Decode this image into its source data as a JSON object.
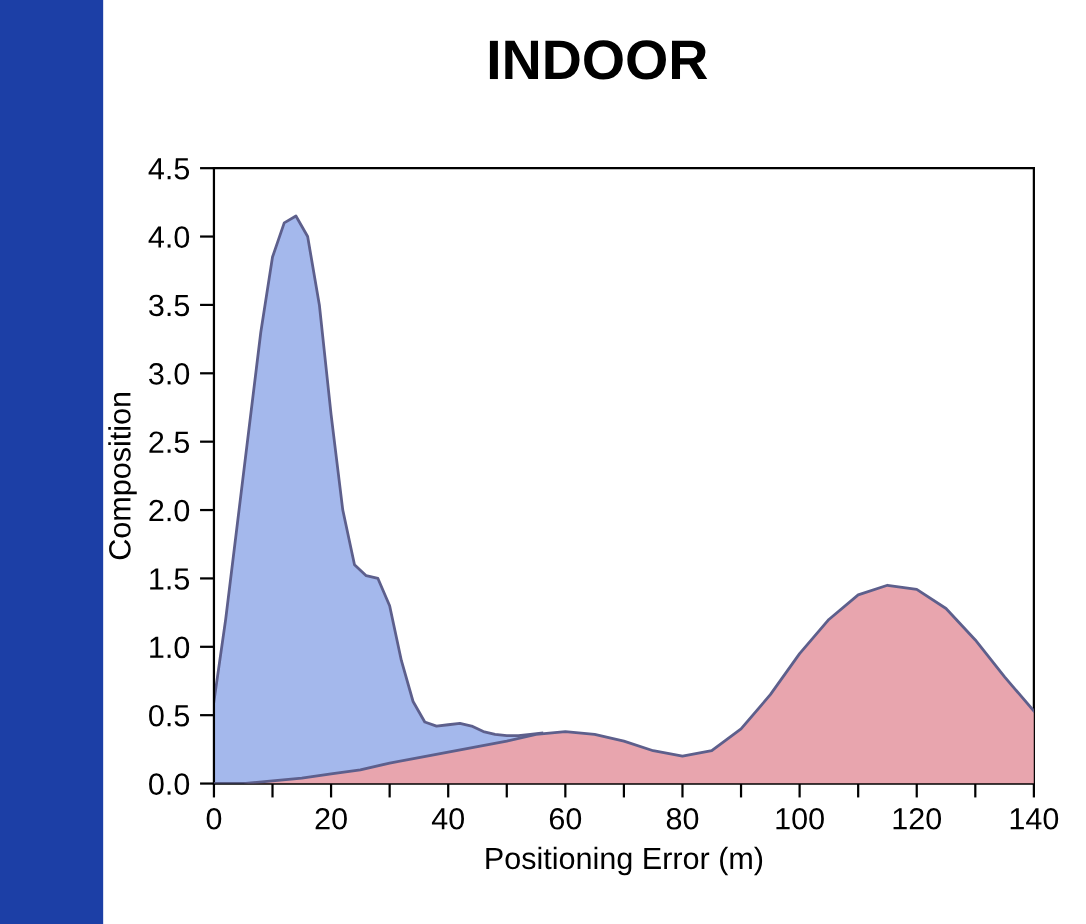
{
  "chart_data": {
    "type": "area",
    "title": "INDOOR",
    "xlabel": "Positioning Error (m)",
    "ylabel": "Composition",
    "xlim": [
      0,
      140
    ],
    "ylim": [
      0,
      4.5
    ],
    "xticks": [
      0,
      {
        "value": 10,
        "label": null
      },
      20,
      {
        "value": 30,
        "label": null
      },
      40,
      {
        "value": 50,
        "label": null
      },
      60,
      {
        "value": 70,
        "label": null
      },
      80,
      {
        "value": 90,
        "label": null
      },
      100,
      {
        "value": 110,
        "label": null
      },
      120,
      {
        "value": 130,
        "label": null
      },
      140
    ],
    "yticks": [
      {
        "value": 0,
        "label": "0.0"
      },
      0.5,
      {
        "value": 1,
        "label": "1.0"
      },
      1.5,
      {
        "value": 2,
        "label": "2.0"
      },
      2.5,
      {
        "value": 3,
        "label": "3.0"
      },
      3.5,
      {
        "value": 4,
        "label": "4.0"
      },
      4.5
    ],
    "grid": false,
    "legend": false,
    "series": [
      {
        "color": "#a4b8ec",
        "x": [
          0,
          2,
          4,
          6,
          8,
          10,
          12,
          14,
          16,
          18,
          20,
          22,
          24,
          26,
          28,
          30,
          32,
          34,
          36,
          38,
          40,
          42,
          44,
          46,
          48,
          50,
          52,
          54,
          56
        ],
        "values": [
          0.6,
          1.2,
          1.9,
          2.6,
          3.3,
          3.85,
          4.1,
          4.15,
          4.0,
          3.5,
          2.7,
          2.0,
          1.6,
          1.52,
          1.5,
          1.3,
          0.9,
          0.6,
          0.45,
          0.42,
          0.43,
          0.44,
          0.42,
          0.38,
          0.36,
          0.35,
          0.35,
          0.36,
          0.37
        ]
      },
      {
        "color": "#e8a5ae",
        "x": [
          0,
          5,
          10,
          15,
          20,
          25,
          30,
          35,
          40,
          45,
          50,
          55,
          60,
          65,
          70,
          75,
          80,
          85,
          90,
          95,
          100,
          105,
          110,
          115,
          120,
          125,
          130,
          135,
          140
        ],
        "values": [
          0,
          0,
          0.02,
          0.04,
          0.07,
          0.1,
          0.15,
          0.19,
          0.23,
          0.27,
          0.31,
          0.36,
          0.38,
          0.36,
          0.31,
          0.24,
          0.2,
          0.24,
          0.4,
          0.65,
          0.95,
          1.2,
          1.38,
          1.45,
          1.42,
          1.28,
          1.05,
          0.78,
          0.53
        ]
      }
    ]
  }
}
